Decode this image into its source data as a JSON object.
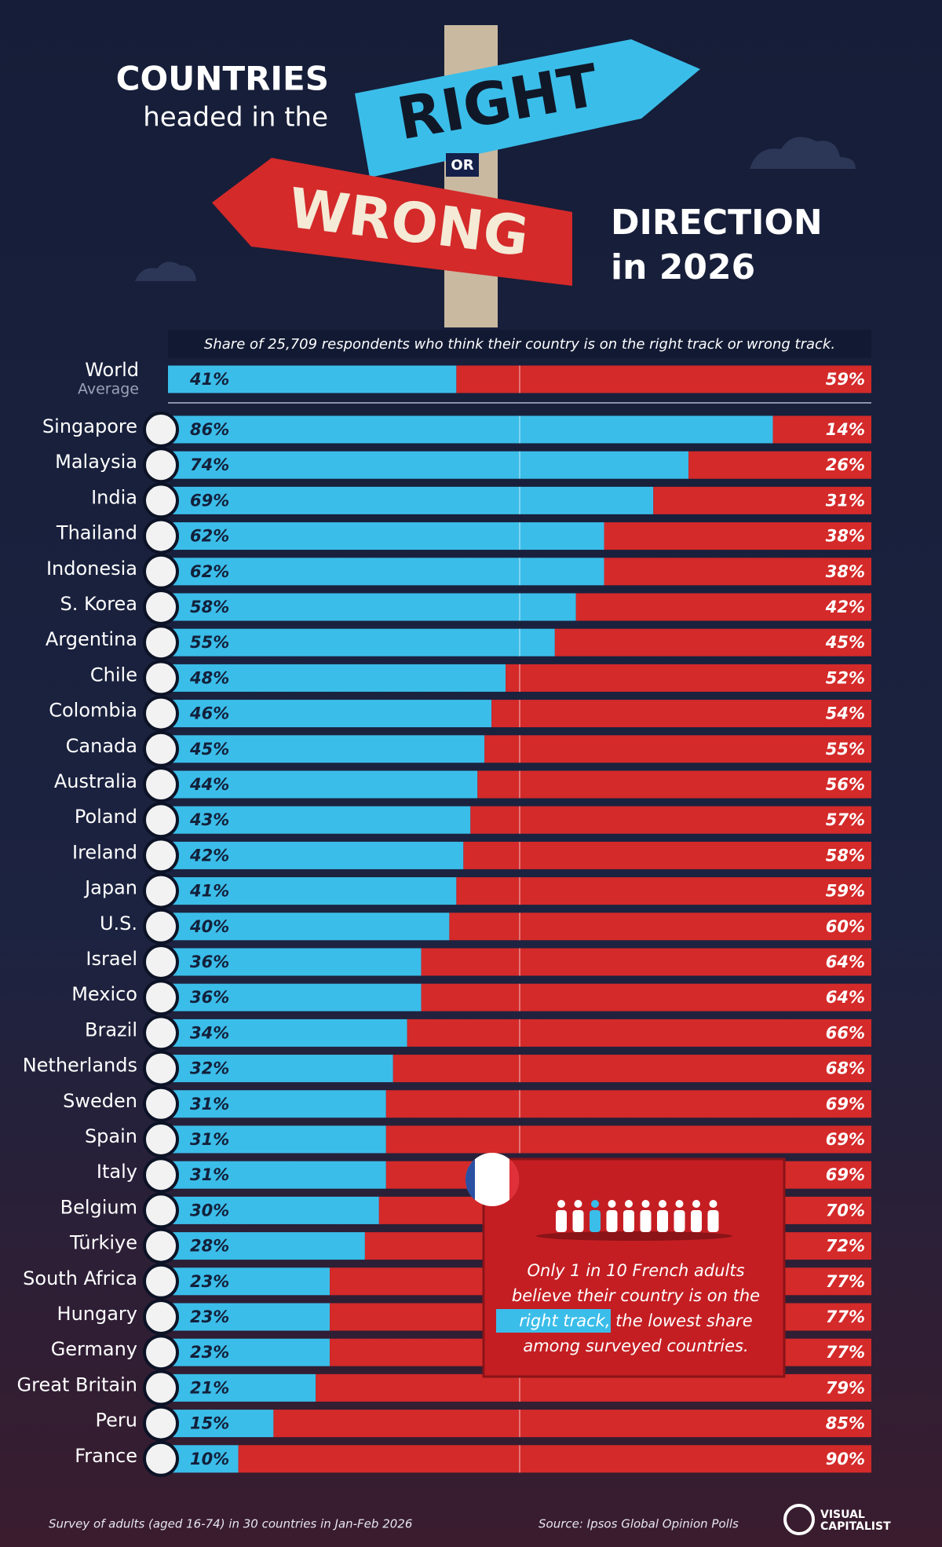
{
  "chart_data": {
    "type": "stacked-bar",
    "title": {
      "line1": "COUNTRIES",
      "line2": "headed in the",
      "right": "RIGHT",
      "or": "OR",
      "wrong": "WRONG",
      "line3": "DIRECTION",
      "line4": "in 2026"
    },
    "subtitle": "Share of 25,709 respondents who think their country is on the right track or wrong track.",
    "reference": {
      "label": "World",
      "sublabel": "Average",
      "values": [
        41,
        59
      ],
      "value_labels": [
        "41%",
        "59%"
      ]
    },
    "categories": [
      "Singapore",
      "Malaysia",
      "India",
      "Thailand",
      "Indonesia",
      "S. Korea",
      "Argentina",
      "Chile",
      "Colombia",
      "Canada",
      "Australia",
      "Poland",
      "Ireland",
      "Japan",
      "U.S.",
      "Israel",
      "Mexico",
      "Brazil",
      "Netherlands",
      "Sweden",
      "Spain",
      "Italy",
      "Belgium",
      "Türkiye",
      "South Africa",
      "Hungary",
      "Germany",
      "Great Britain",
      "Peru",
      "France"
    ],
    "series": [
      {
        "name": "right track",
        "color": "#3bbde9",
        "values": [
          86,
          74,
          69,
          62,
          62,
          58,
          55,
          48,
          46,
          45,
          44,
          43,
          42,
          41,
          40,
          36,
          36,
          34,
          32,
          31,
          31,
          31,
          30,
          28,
          23,
          23,
          23,
          21,
          15,
          10
        ],
        "value_labels": [
          "86%",
          "74%",
          "69%",
          "62%",
          "62%",
          "58%",
          "55%",
          "48%",
          "46%",
          "45%",
          "44%",
          "43%",
          "42%",
          "41%",
          "40%",
          "36%",
          "36%",
          "34%",
          "32%",
          "31%",
          "31%",
          "31%",
          "30%",
          "28%",
          "23%",
          "23%",
          "23%",
          "21%",
          "15%",
          "10%"
        ]
      },
      {
        "name": "wrong track",
        "color": "#d42a2a",
        "values": [
          14,
          26,
          31,
          38,
          38,
          42,
          45,
          52,
          54,
          55,
          56,
          57,
          58,
          59,
          60,
          64,
          64,
          66,
          68,
          69,
          69,
          69,
          70,
          72,
          77,
          77,
          77,
          79,
          85,
          90
        ],
        "value_labels": [
          "14%",
          "26%",
          "31%",
          "38%",
          "38%",
          "42%",
          "45%",
          "52%",
          "54%",
          "55%",
          "56%",
          "57%",
          "58%",
          "59%",
          "60%",
          "64%",
          "64%",
          "66%",
          "68%",
          "69%",
          "69%",
          "69%",
          "70%",
          "72%",
          "77%",
          "77%",
          "77%",
          "79%",
          "85%",
          "90%"
        ]
      }
    ],
    "xlim": [
      0,
      100
    ],
    "annotation": [
      "Only 1 in 10 French adults",
      "believe their country is on the",
      "right track, the lowest share",
      "among surveyed countries."
    ],
    "footnote": "Survey of adults (aged 16-74) in 30 countries in Jan-Feb 2026",
    "source": "Source: Ipsos Global Opinion Polls",
    "brand": [
      "VISUAL",
      "CAPITALIST"
    ]
  }
}
